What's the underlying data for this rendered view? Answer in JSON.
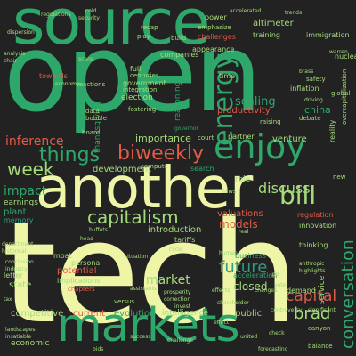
{
  "palette": {
    "background": "#222222",
    "cream": "#eef5a6",
    "lime": "#a6db7c",
    "green": "#2ea86a",
    "teal": "#2f9b80",
    "coral": "#e25b46",
    "salmon": "#d96a55",
    "pale": "#c9e6a1",
    "dim": "#6aa38a"
  },
  "words": [
    {
      "text": "tech",
      "color": "#eef5a6",
      "vertical": false
    },
    {
      "text": "open",
      "color": "#2ea86a",
      "vertical": false
    },
    {
      "text": "source",
      "color": "#2ea86a",
      "vertical": false
    },
    {
      "text": "another",
      "color": "#eef5a6",
      "vertical": false
    },
    {
      "text": "markets",
      "color": "#2ea86a",
      "vertical": false
    },
    {
      "text": "enjoy",
      "color": "#2ea86a",
      "vertical": false
    },
    {
      "text": "capitalism",
      "color": "#a6db7c",
      "vertical": false
    },
    {
      "text": "biweekly",
      "color": "#e25b46",
      "vertical": false
    },
    {
      "text": "things",
      "color": "#2ea86a",
      "vertical": false
    },
    {
      "text": "week",
      "color": "#a6db7c",
      "vertical": false
    },
    {
      "text": "bill",
      "color": "#a6db7c",
      "vertical": false
    },
    {
      "text": "discuss",
      "color": "#a6db7c",
      "vertical": false
    },
    {
      "text": "inference",
      "color": "#e25b46",
      "vertical": false
    },
    {
      "text": "future",
      "color": "#2f9b80",
      "vertical": false
    },
    {
      "text": "conversation",
      "color": "#2ea86a",
      "vertical": true
    },
    {
      "text": "capital",
      "color": "#e25b46",
      "vertical": false
    },
    {
      "text": "brad",
      "color": "#a6db7c",
      "vertical": false
    },
    {
      "text": "models",
      "color": "#e25b46",
      "vertical": false
    },
    {
      "text": "impact",
      "color": "#2ea86a",
      "vertical": false
    },
    {
      "text": "market",
      "color": "#a6db7c",
      "vertical": false
    },
    {
      "text": "closed",
      "color": "#a6db7c",
      "vertical": false
    },
    {
      "text": "energy",
      "color": "#2ea86a",
      "vertical": true
    },
    {
      "text": "scaling",
      "color": "#2ea86a",
      "vertical": false
    },
    {
      "text": "productivity",
      "color": "#e25b46",
      "vertical": false
    },
    {
      "text": "china",
      "color": "#2ea86a",
      "vertical": false
    },
    {
      "text": "development",
      "color": "#a6db7c",
      "vertical": false
    },
    {
      "text": "importance",
      "color": "#a6db7c",
      "vertical": false
    },
    {
      "text": "venture",
      "color": "#a6db7c",
      "vertical": false
    },
    {
      "text": "valuations",
      "color": "#e25b46",
      "vertical": false
    },
    {
      "text": "introduction",
      "color": "#a6db7c",
      "vertical": false
    },
    {
      "text": "regulation",
      "color": "#e25b46",
      "vertical": false
    },
    {
      "text": "innovation",
      "color": "#a6db7c",
      "vertical": false
    },
    {
      "text": "earnings",
      "color": "#a6db7c",
      "vertical": false
    },
    {
      "text": "competitive",
      "color": "#a6db7c",
      "vertical": false
    },
    {
      "text": "current",
      "color": "#e25b46",
      "vertical": false
    },
    {
      "text": "evolution",
      "color": "#2ea86a",
      "vertical": false
    },
    {
      "text": "intelligence",
      "color": "#a6db7c",
      "vertical": false
    },
    {
      "text": "public",
      "color": "#a6db7c",
      "vertical": false
    },
    {
      "text": "demand",
      "color": "#a6db7c",
      "vertical": false
    },
    {
      "text": "service",
      "color": "#a6db7c",
      "vertical": true
    },
    {
      "text": "plant",
      "color": "#2ea86a",
      "vertical": false
    },
    {
      "text": "memory",
      "color": "#2f9b80",
      "vertical": false
    },
    {
      "text": "moat",
      "color": "#a6db7c",
      "vertical": false
    },
    {
      "text": "state",
      "color": "#a6db7c",
      "vertical": false
    },
    {
      "text": "potential",
      "color": "#e25b46",
      "vertical": false
    },
    {
      "text": "implications",
      "color": "#a6db7c",
      "vertical": false
    },
    {
      "text": "personal",
      "color": "#a6db7c",
      "vertical": false
    },
    {
      "text": "economic",
      "color": "#a6db7c",
      "vertical": false
    },
    {
      "text": "acceleration",
      "color": "#2ea86a",
      "vertical": false
    },
    {
      "text": "business",
      "color": "#2ea86a",
      "vertical": false
    },
    {
      "text": "altimeter",
      "color": "#a6db7c",
      "vertical": false
    },
    {
      "text": "training",
      "color": "#a6db7c",
      "vertical": false
    },
    {
      "text": "immigration",
      "color": "#a6db7c",
      "vertical": false
    },
    {
      "text": "challenges",
      "color": "#e25b46",
      "vertical": false
    },
    {
      "text": "appearance",
      "color": "#a6db7c",
      "vertical": false
    },
    {
      "text": "inflation",
      "color": "#a6db7c",
      "vertical": false
    },
    {
      "text": "election",
      "color": "#a6db7c",
      "vertical": false
    },
    {
      "text": "full",
      "color": "#a6db7c",
      "vertical": false
    },
    {
      "text": "centuries",
      "color": "#a6db7c",
      "vertical": false
    },
    {
      "text": "government",
      "color": "#a6db7c",
      "vertical": false
    },
    {
      "text": "integration",
      "color": "#a6db7c",
      "vertical": false
    },
    {
      "text": "companies",
      "color": "#a6db7c",
      "vertical": false
    },
    {
      "text": "recap",
      "color": "#a6db7c",
      "vertical": false
    },
    {
      "text": "play",
      "color": "#a6db7c",
      "vertical": false
    },
    {
      "text": "build",
      "color": "#a6db7c",
      "vertical": false
    },
    {
      "text": "power",
      "color": "#a6db7c",
      "vertical": false
    },
    {
      "text": "emphasize",
      "color": "#a6db7c",
      "vertical": false
    },
    {
      "text": "towards",
      "color": "#e25b46",
      "vertical": false
    },
    {
      "text": "time",
      "color": "#a6db7c",
      "vertical": false
    },
    {
      "text": "partner",
      "color": "#a6db7c",
      "vertical": false
    },
    {
      "text": "governor",
      "color": "#2ea86a",
      "vertical": false
    },
    {
      "text": "search",
      "color": "#2ea86a",
      "vertical": false
    },
    {
      "text": "compute",
      "color": "#a6db7c",
      "vertical": false
    },
    {
      "text": "tariffs",
      "color": "#a6db7c",
      "vertical": false
    },
    {
      "text": "role",
      "color": "#a6db7c",
      "vertical": false
    },
    {
      "text": "nuclear",
      "color": "#a6db7c",
      "vertical": false
    },
    {
      "text": "global",
      "color": "#a6db7c",
      "vertical": false
    },
    {
      "text": "thanksgiving",
      "color": "#2ea86a",
      "vertical": true
    },
    {
      "text": "reasoning",
      "color": "#2ea86a",
      "vertical": true
    },
    {
      "text": "fostering",
      "color": "#a6db7c",
      "vertical": false
    },
    {
      "text": "data",
      "color": "#a6db7c",
      "vertical": false
    },
    {
      "text": "bubble",
      "color": "#a6db7c",
      "vertical": false
    },
    {
      "text": "court",
      "color": "#a6db7c",
      "vertical": false
    },
    {
      "text": "raising",
      "color": "#a6db7c",
      "vertical": false
    },
    {
      "text": "debate",
      "color": "#a6db7c",
      "vertical": false
    },
    {
      "text": "safety",
      "color": "#a6db7c",
      "vertical": false
    },
    {
      "text": "reality",
      "color": "#a6db7c",
      "vertical": true
    },
    {
      "text": "overcapitalization",
      "color": "#a6db7c",
      "vertical": true
    },
    {
      "text": "board",
      "color": "#a6db7c",
      "vertical": false
    },
    {
      "text": "reactions",
      "color": "#a6db7c",
      "vertical": false
    },
    {
      "text": "department",
      "color": "#a6db7c",
      "vertical": false
    },
    {
      "text": "historical",
      "color": "#a6db7c",
      "vertical": false
    },
    {
      "text": "letter",
      "color": "#a6db7c",
      "vertical": false
    },
    {
      "text": "head",
      "color": "#a6db7c",
      "vertical": false
    },
    {
      "text": "buffets",
      "color": "#a6db7c",
      "vertical": false
    },
    {
      "text": "situation",
      "color": "#a6db7c",
      "vertical": false
    },
    {
      "text": "cycle",
      "color": "#a6db7c",
      "vertical": false
    },
    {
      "text": "human",
      "color": "#a6db7c",
      "vertical": false
    },
    {
      "text": "thinking",
      "color": "#a6db7c",
      "vertical": false
    },
    {
      "text": "anthropic",
      "color": "#a6db7c",
      "vertical": false
    },
    {
      "text": "highlights",
      "color": "#a6db7c",
      "vertical": false
    },
    {
      "text": "ipo",
      "color": "#a6db7c",
      "vertical": false
    },
    {
      "text": "chapters",
      "color": "#e25b46",
      "vertical": false
    },
    {
      "text": "versus",
      "color": "#a6db7c",
      "vertical": false
    },
    {
      "text": "prosperity",
      "color": "#a6db7c",
      "vertical": false
    },
    {
      "text": "correction",
      "color": "#a6db7c",
      "vertical": false
    },
    {
      "text": "invest",
      "color": "#a6db7c",
      "vertical": false
    },
    {
      "text": "controversy",
      "color": "#a6db7c",
      "vertical": false
    },
    {
      "text": "significant",
      "color": "#a6db7c",
      "vertical": false
    },
    {
      "text": "canyon",
      "color": "#a6db7c",
      "vertical": false
    },
    {
      "text": "balance",
      "color": "#a6db7c",
      "vertical": false
    },
    {
      "text": "forecasting",
      "color": "#a6db7c",
      "vertical": false
    },
    {
      "text": "insatiable",
      "color": "#a6db7c",
      "vertical": false
    },
    {
      "text": "success",
      "color": "#a6db7c",
      "vertical": false
    },
    {
      "text": "challenge",
      "color": "#a6db7c",
      "vertical": false
    },
    {
      "text": "united",
      "color": "#a6db7c",
      "vertical": false
    },
    {
      "text": "bids",
      "color": "#a6db7c",
      "vertical": false
    },
    {
      "text": "tax",
      "color": "#a6db7c",
      "vertical": false
    },
    {
      "text": "security",
      "color": "#a6db7c",
      "vertical": false
    },
    {
      "text": "cold",
      "color": "#a6db7c",
      "vertical": false
    },
    {
      "text": "accelerated",
      "color": "#a6db7c",
      "vertical": false
    },
    {
      "text": "regulations",
      "color": "#a6db7c",
      "vertical": false
    },
    {
      "text": "trends",
      "color": "#a6db7c",
      "vertical": false
    },
    {
      "text": "dispersion",
      "color": "#a6db7c",
      "vertical": false
    },
    {
      "text": "chair",
      "color": "#a6db7c",
      "vertical": false
    },
    {
      "text": "analysis",
      "color": "#a6db7c",
      "vertical": false
    },
    {
      "text": "scans",
      "color": "#a6db7c",
      "vertical": false
    },
    {
      "text": "warren",
      "color": "#a6db7c",
      "vertical": false
    },
    {
      "text": "brass",
      "color": "#a6db7c",
      "vertical": false
    },
    {
      "text": "driving",
      "color": "#a6db7c",
      "vertical": false
    },
    {
      "text": "vote",
      "color": "#a6db7c",
      "vertical": false
    },
    {
      "text": "changes",
      "color": "#a6db7c",
      "vertical": false
    },
    {
      "text": "check",
      "color": "#a6db7c",
      "vertical": false
    },
    {
      "text": "economy",
      "color": "#a6db7c",
      "vertical": false
    },
    {
      "text": "industry",
      "color": "#a6db7c",
      "vertical": false
    },
    {
      "text": "conclusion",
      "color": "#a6db7c",
      "vertical": false
    },
    {
      "text": "landscapes",
      "color": "#a6db7c",
      "vertical": false
    },
    {
      "text": "assistants",
      "color": "#a6db7c",
      "vertical": false
    },
    {
      "text": "shareholder",
      "color": "#a6db7c",
      "vertical": false
    },
    {
      "text": "effects",
      "color": "#a6db7c",
      "vertical": false
    },
    {
      "text": "effect",
      "color": "#a6db7c",
      "vertical": false
    },
    {
      "text": "new",
      "color": "#a6db7c",
      "vertical": false
    },
    {
      "text": "real",
      "color": "#a6db7c",
      "vertical": false
    },
    {
      "text": "laws",
      "color": "#a6db7c",
      "vertical": false
    }
  ]
}
